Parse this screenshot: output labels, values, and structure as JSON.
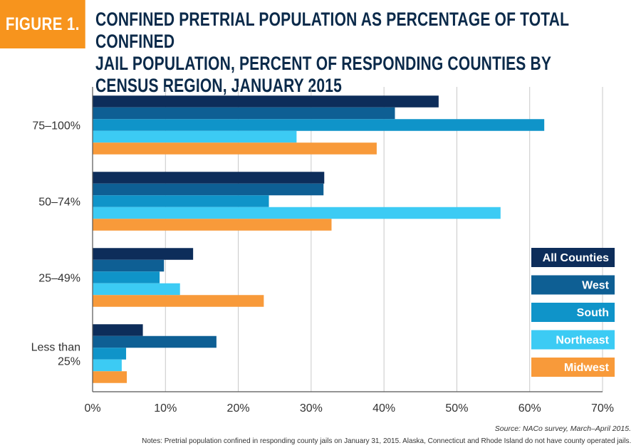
{
  "badge": "FIGURE 1.",
  "title": "CONFINED PRETRIAL POPULATION AS PERCENTAGE OF TOTAL CONFINED JAIL POPULATION, PERCENT OF RESPONDING COUNTIES BY CENSUS REGION, JANUARY 2015",
  "source": "Source: NACo survey, March–April 2015.",
  "notes": "Notes: Pretrial population confined in responding county jails on January 31, 2015.  Alaska, Connecticut and Rhode Island do not have county operated jails.",
  "chart_data": {
    "type": "bar",
    "orientation": "horizontal",
    "categories": [
      "75–100%",
      "50–74%",
      "25–49%",
      "Less than 25%"
    ],
    "category_lines": [
      [
        "75–100%"
      ],
      [
        "50–74%"
      ],
      [
        "25–49%"
      ],
      [
        "Less than",
        "25%"
      ]
    ],
    "series": [
      {
        "name": "All Counties",
        "color": "#0D2D5A",
        "values": [
          47.5,
          31.8,
          13.8,
          6.9
        ]
      },
      {
        "name": "West",
        "color": "#0E5F94",
        "values": [
          41.5,
          31.7,
          9.8,
          17.0
        ]
      },
      {
        "name": "South",
        "color": "#0F94C9",
        "values": [
          62.0,
          24.2,
          9.2,
          4.6
        ]
      },
      {
        "name": "Northeast",
        "color": "#3CCBF4",
        "values": [
          28.0,
          56.0,
          12.0,
          4.0
        ]
      },
      {
        "name": "Midwest",
        "color": "#F89A3A",
        "values": [
          39.0,
          32.8,
          23.5,
          4.7
        ]
      }
    ],
    "xlim": [
      0,
      70
    ],
    "xticks": [
      0,
      10,
      20,
      30,
      40,
      50,
      60,
      70
    ],
    "xtick_labels": [
      "0%",
      "10%",
      "20%",
      "30%",
      "40%",
      "50%",
      "60%",
      "70%"
    ],
    "grid": true,
    "legend_position": "right"
  }
}
